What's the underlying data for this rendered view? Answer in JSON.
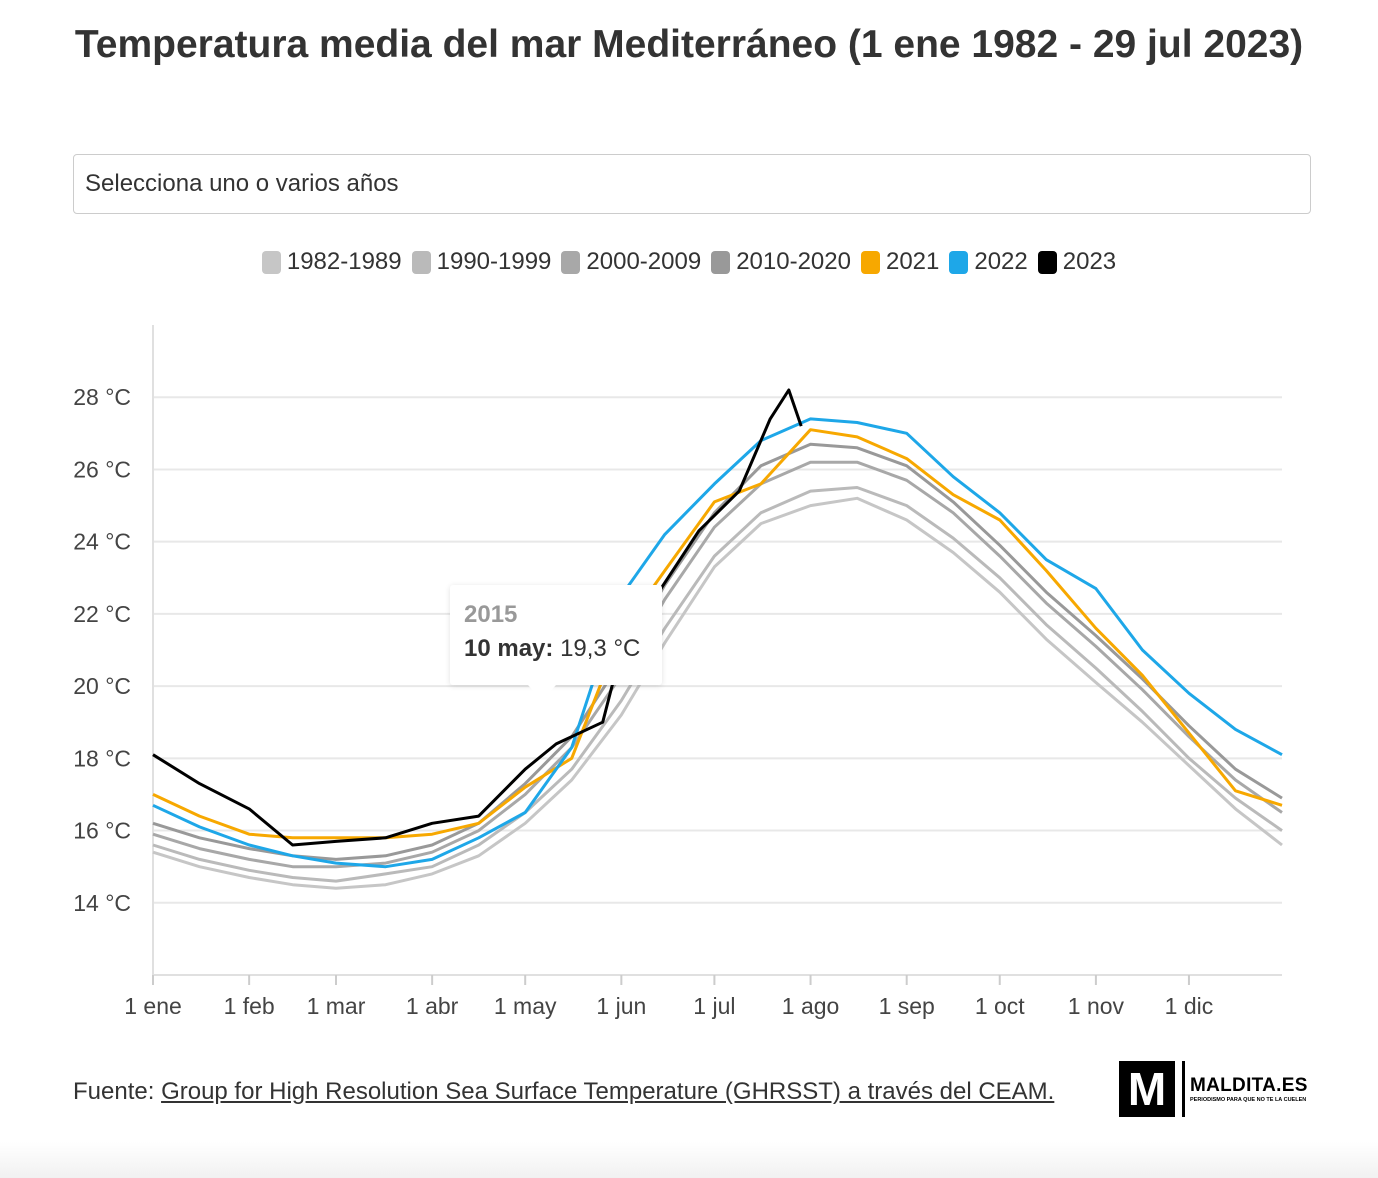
{
  "title": "Temperatura media del mar Mediterráneo (1 ene 1982 - 29 jul 2023)",
  "select": {
    "placeholder": "Selecciona uno o varios años"
  },
  "tooltip": {
    "year": "2015",
    "date": "10 may:",
    "value": "19,3 °C",
    "point": {
      "day": 129,
      "y": 19.3
    }
  },
  "source": {
    "prefix": "Fuente: ",
    "link": "Group for High Resolution Sea Surface Temperature (GHRSST) a través del CEAM."
  },
  "logo": {
    "name": "MALDITA.ES",
    "tagline": "PERIODISMO PARA QUE NO TE LA CUELEN",
    "letter": "M"
  },
  "chart_data": {
    "type": "line",
    "title": "Temperatura media del mar Mediterráneo (1 ene 1982 - 29 jul 2023)",
    "x_unit": "day of year",
    "xlim": [
      0,
      364
    ],
    "ylim": [
      12,
      30
    ],
    "grid": true,
    "legend_placement": "top",
    "x_ticks": [
      {
        "day": 0,
        "label": "1 ene"
      },
      {
        "day": 31,
        "label": "1 feb"
      },
      {
        "day": 59,
        "label": "1 mar"
      },
      {
        "day": 90,
        "label": "1 abr"
      },
      {
        "day": 120,
        "label": "1 may"
      },
      {
        "day": 151,
        "label": "1 jun"
      },
      {
        "day": 181,
        "label": "1 jul"
      },
      {
        "day": 212,
        "label": "1 ago"
      },
      {
        "day": 243,
        "label": "1 sep"
      },
      {
        "day": 273,
        "label": "1 oct"
      },
      {
        "day": 304,
        "label": "1 nov"
      },
      {
        "day": 334,
        "label": "1 dic"
      }
    ],
    "y_ticks": [
      {
        "v": 14,
        "label": "14 °C"
      },
      {
        "v": 16,
        "label": "16 °C"
      },
      {
        "v": 18,
        "label": "18 °C"
      },
      {
        "v": 20,
        "label": "20 °C"
      },
      {
        "v": 22,
        "label": "22 °C"
      },
      {
        "v": 24,
        "label": "24 °C"
      },
      {
        "v": 26,
        "label": "26 °C"
      },
      {
        "v": 28,
        "label": "28 °C"
      }
    ],
    "x": [
      0,
      15,
      31,
      45,
      59,
      75,
      90,
      105,
      120,
      135,
      151,
      165,
      181,
      196,
      212,
      227,
      243,
      258,
      273,
      288,
      304,
      319,
      334,
      349,
      364
    ],
    "series": [
      {
        "name": "1982-1989",
        "color": "#c6c6c6",
        "values": [
          15.4,
          15.0,
          14.7,
          14.5,
          14.4,
          14.5,
          14.8,
          15.3,
          16.2,
          17.4,
          19.2,
          21.2,
          23.3,
          24.5,
          25.0,
          25.2,
          24.6,
          23.7,
          22.6,
          21.3,
          20.1,
          19.0,
          17.8,
          16.6,
          15.6
        ]
      },
      {
        "name": "1990-1999",
        "color": "#bababa",
        "values": [
          15.6,
          15.2,
          14.9,
          14.7,
          14.6,
          14.8,
          15.0,
          15.6,
          16.5,
          17.7,
          19.6,
          21.6,
          23.6,
          24.8,
          25.4,
          25.5,
          25.0,
          24.1,
          23.0,
          21.7,
          20.5,
          19.3,
          18.0,
          16.9,
          16.0
        ]
      },
      {
        "name": "2000-2009",
        "color": "#a8a8a8",
        "values": [
          15.9,
          15.5,
          15.2,
          15.0,
          15.0,
          15.1,
          15.4,
          16.0,
          17.0,
          18.3,
          20.3,
          22.4,
          24.4,
          25.6,
          26.2,
          26.2,
          25.7,
          24.8,
          23.6,
          22.3,
          21.1,
          19.9,
          18.6,
          17.4,
          16.5
        ]
      },
      {
        "name": "2010-2020",
        "color": "#999999",
        "values": [
          16.2,
          15.8,
          15.5,
          15.3,
          15.2,
          15.3,
          15.6,
          16.2,
          17.3,
          18.6,
          20.7,
          22.8,
          24.8,
          26.1,
          26.7,
          26.6,
          26.1,
          25.1,
          23.9,
          22.6,
          21.4,
          20.2,
          18.9,
          17.7,
          16.9
        ]
      },
      {
        "name": "2021",
        "color": "#f7a800",
        "values": [
          17.0,
          16.4,
          15.9,
          15.8,
          15.8,
          15.8,
          15.9,
          16.2,
          17.2,
          18.0,
          21.5,
          23.2,
          25.1,
          25.6,
          27.1,
          26.9,
          26.3,
          25.3,
          24.6,
          23.2,
          21.6,
          20.3,
          18.7,
          17.1,
          16.7
        ]
      },
      {
        "name": "2022",
        "color": "#1ea7e8",
        "values": [
          16.7,
          16.1,
          15.6,
          15.3,
          15.1,
          15.0,
          15.2,
          15.8,
          16.5,
          18.3,
          22.5,
          24.2,
          25.6,
          26.8,
          27.4,
          27.3,
          27.0,
          25.8,
          24.8,
          23.5,
          22.7,
          21.0,
          19.8,
          18.8,
          18.1
        ]
      },
      {
        "name": "2023",
        "color": "#000000",
        "x": [
          0,
          15,
          31,
          45,
          59,
          75,
          90,
          105,
          120,
          130,
          145,
          151,
          163,
          176,
          189,
          199,
          205,
          209
        ],
        "values": [
          18.1,
          17.3,
          16.6,
          15.6,
          15.7,
          15.8,
          16.2,
          16.4,
          17.7,
          18.4,
          19.0,
          21.0,
          22.6,
          24.3,
          25.4,
          27.4,
          28.2,
          27.2
        ]
      }
    ]
  }
}
